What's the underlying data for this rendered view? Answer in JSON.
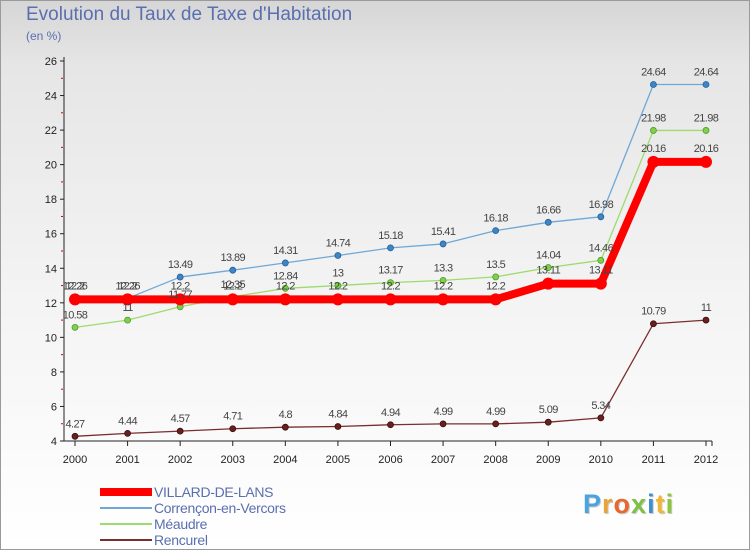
{
  "header": {
    "title": "Evolution du Taux de Taxe d'Habitation",
    "unit": "(en %)"
  },
  "brand": {
    "logo_text": "Proxiti",
    "logo_colors": [
      "#4aa3df",
      "#e8a33a",
      "#e8662f",
      "#7cc142",
      "#3d8fd1",
      "#f2b632",
      "#8cc63f"
    ]
  },
  "chart_data": {
    "type": "line",
    "title": "Evolution du Taux de Taxe d'Habitation",
    "subtitle": "(en %)",
    "xlabel": "",
    "ylabel": "",
    "x": [
      "2000",
      "2001",
      "2002",
      "2003",
      "2004",
      "2005",
      "2006",
      "2007",
      "2008",
      "2009",
      "2010",
      "2011",
      "2012"
    ],
    "ylim": [
      4,
      26
    ],
    "yticks": [
      4,
      6,
      8,
      10,
      12,
      14,
      16,
      18,
      20,
      22,
      24,
      26
    ],
    "grid": false,
    "legend_position": "bottom-left",
    "series": [
      {
        "name": "VILLARD-DE-LANS",
        "color": "#ff0000",
        "values": [
          12.2,
          12.2,
          12.2,
          12.2,
          12.2,
          12.2,
          12.2,
          12.2,
          12.2,
          13.11,
          13.11,
          20.16,
          20.16
        ],
        "labels": [
          "12.2",
          "12.2",
          "12.2",
          "12.2",
          "12.2",
          "12.2",
          "12.2",
          "12.2",
          "12.2",
          "13.11",
          "13.11",
          "20.16",
          "20.16"
        ]
      },
      {
        "name": "Corrençon-en-Vercors",
        "color": "#6fa8d6",
        "values": [
          12.26,
          12.26,
          13.49,
          13.89,
          14.31,
          14.74,
          15.18,
          15.41,
          16.18,
          16.66,
          16.98,
          24.64,
          24.64
        ],
        "labels": [
          "12.26",
          "12.26",
          "13.49",
          "13.89",
          "14.31",
          "14.74",
          "15.18",
          "15.41",
          "16.18",
          "16.66",
          "16.98",
          "24.64",
          "24.64"
        ]
      },
      {
        "name": "Méaudre",
        "color": "#9edb6e",
        "values": [
          10.58,
          11,
          11.77,
          12.35,
          12.84,
          13,
          13.17,
          13.3,
          13.5,
          14.04,
          14.46,
          21.98,
          21.98
        ],
        "labels": [
          "10.58",
          "11",
          "11.77",
          "12.35",
          "12.84",
          "13",
          "13.17",
          "13.3",
          "13.5",
          "14.04",
          "14.46",
          "21.98",
          "21.98"
        ]
      },
      {
        "name": "Rencurel",
        "color": "#7a2e2e",
        "values": [
          4.27,
          4.44,
          4.57,
          4.71,
          4.8,
          4.84,
          4.94,
          4.99,
          4.99,
          5.09,
          5.34,
          10.79,
          11
        ],
        "labels": [
          "4.27",
          "4.44",
          "4.57",
          "4.71",
          "4.8",
          "4.84",
          "4.94",
          "4.99",
          "4.99",
          "5.09",
          "5.34",
          "10.79",
          "11"
        ]
      }
    ]
  }
}
